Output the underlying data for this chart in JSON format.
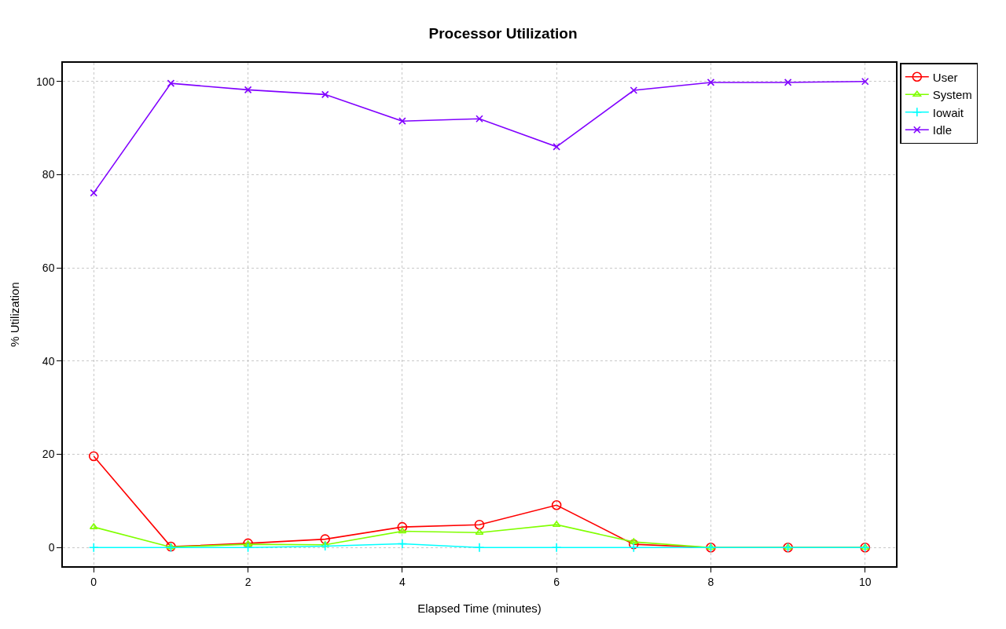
{
  "chart_data": {
    "type": "line",
    "title": "Processor Utilization",
    "xlabel": "Elapsed Time (minutes)",
    "ylabel": "% Utilization",
    "x": [
      0,
      1,
      2,
      3,
      4,
      5,
      6,
      7,
      8,
      9,
      10
    ],
    "series": [
      {
        "name": "User",
        "color": "#ff0000",
        "marker": "circle",
        "values": [
          19.6,
          0.2,
          0.9,
          1.8,
          4.4,
          4.9,
          9.1,
          0.7,
          0,
          0,
          0
        ]
      },
      {
        "name": "System",
        "color": "#80ff00",
        "marker": "triangle",
        "values": [
          4.4,
          0.1,
          0.7,
          0.6,
          3.5,
          3.2,
          4.9,
          1.2,
          0,
          0,
          0
        ]
      },
      {
        "name": "Iowait",
        "color": "#00ffff",
        "marker": "cross",
        "values": [
          0,
          0,
          0,
          0.3,
          0.8,
          0,
          0,
          0,
          0,
          0,
          0
        ]
      },
      {
        "name": "Idle",
        "color": "#8000ff",
        "marker": "x",
        "values": [
          76.1,
          99.6,
          98.2,
          97.2,
          91.5,
          92,
          86,
          98.1,
          99.8,
          99.8,
          100
        ]
      }
    ],
    "xlim": [
      -0.4,
      10.4
    ],
    "ylim": [
      -4,
      104
    ],
    "xticks": [
      0,
      2,
      4,
      6,
      8,
      10
    ],
    "yticks": [
      0,
      20,
      40,
      60,
      80,
      100
    ],
    "grid": true,
    "legend": "top right"
  }
}
